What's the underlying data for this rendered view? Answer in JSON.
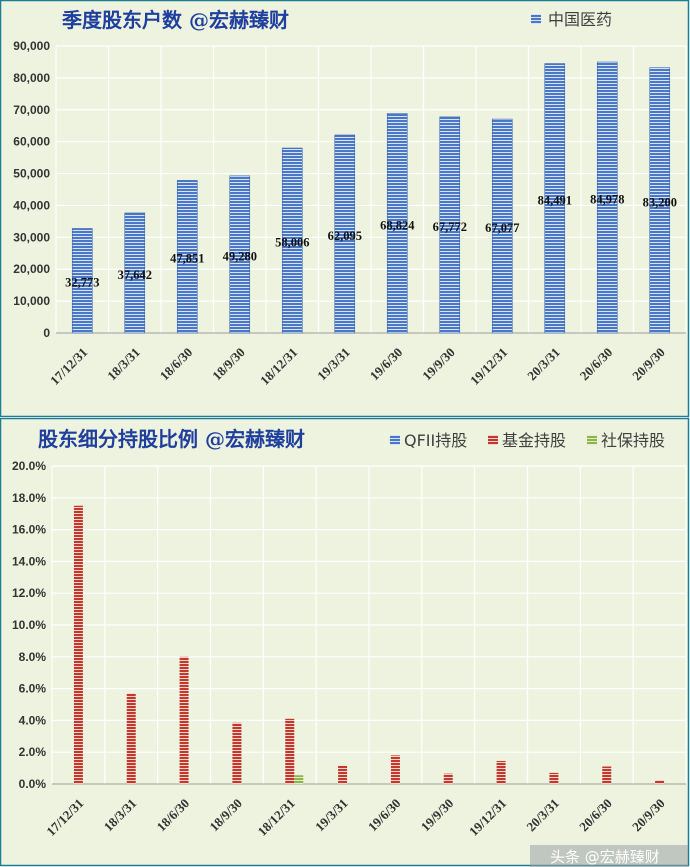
{
  "charts": {
    "top": {
      "title": "季度股东户数 @宏赫臻财",
      "legend": [
        "中国医药"
      ],
      "colors": {
        "background": "#eef3df",
        "border": "#1d7d92",
        "bar": "#4a78c6",
        "bar_stripe": "#d7e3f7",
        "grid": "#ffffff"
      }
    },
    "bottom": {
      "title": "股东细分持股比例 @宏赫臻财",
      "legend": [
        "QFII持股",
        "基金持股",
        "社保持股"
      ],
      "colors": {
        "background": "#eef3df",
        "border": "#1d7d92",
        "qfii": "#4a78c6",
        "fund": "#c0392b",
        "social": "#8db34a",
        "stripe": "#ffffff"
      }
    }
  },
  "watermark": "头条 @宏赫臻财",
  "chart_data": [
    {
      "type": "bar",
      "title": "季度股东户数 @宏赫臻财",
      "categories": [
        "17/12/31",
        "18/3/31",
        "18/6/30",
        "18/9/30",
        "18/12/31",
        "19/3/31",
        "19/6/30",
        "19/9/30",
        "19/12/31",
        "20/3/31",
        "20/6/30",
        "20/9/30"
      ],
      "series": [
        {
          "name": "中国医药",
          "values": [
            32773,
            37642,
            47851,
            49280,
            58006,
            62095,
            68824,
            67772,
            67077,
            84491,
            84978,
            83200
          ]
        }
      ],
      "data_labels": [
        "32,773",
        "37,642",
        "47,851",
        "49,280",
        "58,006",
        "62,095",
        "68,824",
        "67,772",
        "67,077",
        "84,491",
        "84,978",
        "83,200"
      ],
      "ylim": [
        0,
        90000
      ],
      "y_ticks": [
        "0",
        "10,000",
        "20,000",
        "30,000",
        "40,000",
        "50,000",
        "60,000",
        "70,000",
        "80,000",
        "90,000"
      ],
      "legend_position": "top-right",
      "grid": true
    },
    {
      "type": "bar",
      "title": "股东细分持股比例 @宏赫臻财",
      "categories": [
        "17/12/31",
        "18/3/31",
        "18/6/30",
        "18/9/30",
        "18/12/31",
        "19/3/31",
        "19/6/30",
        "19/9/30",
        "19/12/31",
        "20/3/31",
        "20/6/30",
        "20/9/30"
      ],
      "series": [
        {
          "name": "QFII持股",
          "values": [
            0,
            0,
            0,
            0,
            0,
            0,
            0,
            0,
            0,
            0,
            0,
            0
          ]
        },
        {
          "name": "基金持股",
          "values": [
            17.5,
            5.7,
            8.0,
            3.85,
            4.1,
            1.15,
            1.8,
            0.65,
            1.45,
            0.7,
            1.1,
            0.25
          ]
        },
        {
          "name": "社保持股",
          "values": [
            0,
            0,
            0,
            0,
            0.55,
            0,
            0,
            0,
            0,
            0,
            0,
            0
          ]
        }
      ],
      "ylim": [
        0,
        20
      ],
      "y_ticks": [
        "0.0%",
        "2.0%",
        "4.0%",
        "6.0%",
        "8.0%",
        "10.0%",
        "12.0%",
        "14.0%",
        "16.0%",
        "18.0%",
        "20.0%"
      ],
      "legend_position": "top-right",
      "grid": true
    }
  ]
}
